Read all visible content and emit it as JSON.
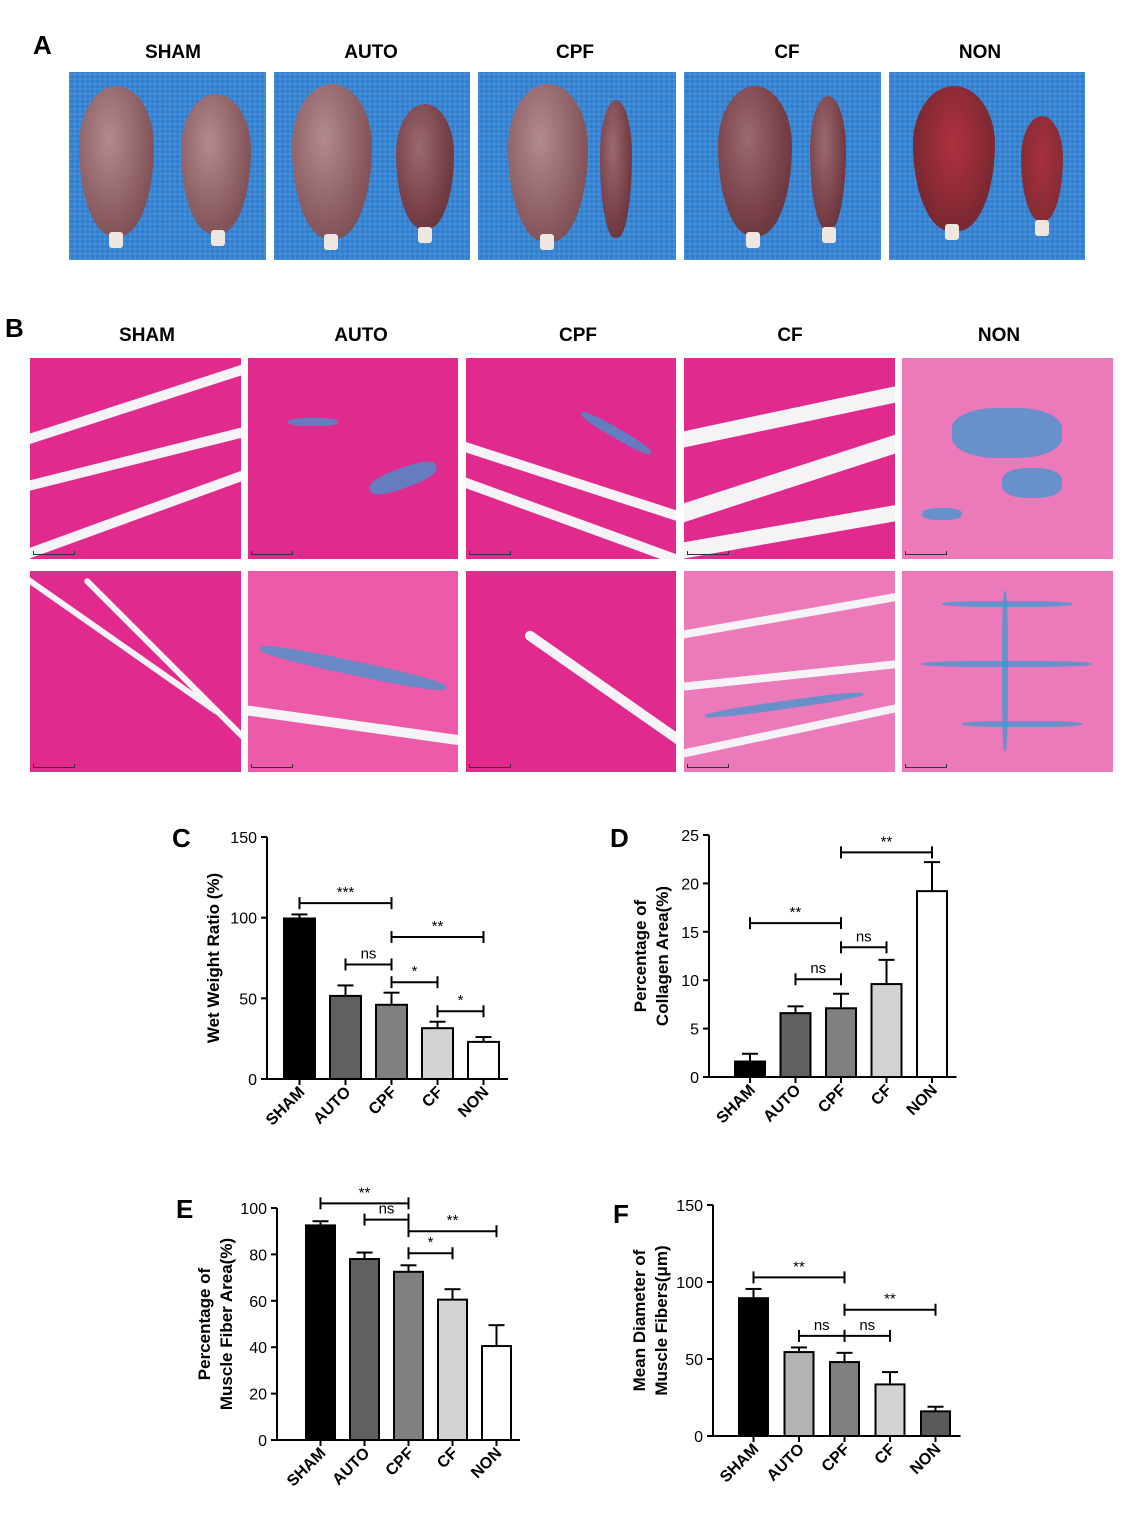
{
  "panels": {
    "a": {
      "letter": "A",
      "labels": [
        "SHAM",
        "AUTO",
        "CPF",
        "CF",
        "NON"
      ]
    },
    "b": {
      "letter": "B",
      "labels": [
        "SHAM",
        "AUTO",
        "CPF",
        "CF",
        "NON"
      ]
    }
  },
  "chart_data": [
    {
      "panel": "C",
      "type": "bar",
      "categories": [
        "SHAM",
        "AUTO",
        "CPF",
        "CF",
        "NON"
      ],
      "values": [
        99.5,
        51.5,
        46,
        31.5,
        23
      ],
      "errors": [
        2.5,
        6.5,
        7.5,
        4,
        3
      ],
      "fills": [
        "#000000",
        "#606060",
        "#808080",
        "#d3d3d3",
        "#ffffff"
      ],
      "ylabel": "Wet Weight Ratio (%)",
      "ylim": [
        0,
        150
      ],
      "yticks": [
        0,
        50,
        100,
        150
      ],
      "annotations": [
        {
          "from": "SHAM",
          "to": "CPF",
          "y": 109,
          "label": "***"
        },
        {
          "from": "AUTO",
          "to": "CPF",
          "y": 71,
          "label": "ns"
        },
        {
          "from": "CPF",
          "to": "NON",
          "y": 88,
          "label": "**"
        },
        {
          "from": "CPF",
          "to": "CF",
          "y": 60,
          "label": "*"
        },
        {
          "from": "CF",
          "to": "NON",
          "y": 42,
          "label": "*"
        }
      ]
    },
    {
      "panel": "D",
      "type": "bar",
      "categories": [
        "SHAM",
        "AUTO",
        "CPF",
        "CF",
        "NON"
      ],
      "values": [
        1.6,
        6.6,
        7.1,
        9.6,
        19.2
      ],
      "errors": [
        0.8,
        0.7,
        1.5,
        2.5,
        3.0
      ],
      "fills": [
        "#000000",
        "#606060",
        "#808080",
        "#d3d3d3",
        "#ffffff"
      ],
      "ylabel": "Percentage of Collagen Area(%)",
      "ylim": [
        0,
        25
      ],
      "yticks": [
        0,
        5,
        10,
        15,
        20,
        25
      ],
      "annotations": [
        {
          "from": "SHAM",
          "to": "CPF",
          "y": 15.9,
          "label": "**"
        },
        {
          "from": "AUTO",
          "to": "CPF",
          "y": 10.1,
          "label": "ns"
        },
        {
          "from": "CPF",
          "to": "CF",
          "y": 13.4,
          "label": "ns"
        },
        {
          "from": "CPF",
          "to": "NON",
          "y": 23.2,
          "label": "**"
        }
      ]
    },
    {
      "panel": "E",
      "type": "bar",
      "categories": [
        "SHAM",
        "AUTO",
        "CPF",
        "CF",
        "NON"
      ],
      "values": [
        92.5,
        78,
        72.5,
        60.5,
        40.5
      ],
      "errors": [
        1.8,
        2.8,
        2.8,
        4.5,
        9
      ],
      "fills": [
        "#000000",
        "#606060",
        "#808080",
        "#d3d3d3",
        "#ffffff"
      ],
      "ylabel": "Percentage of Muscle Fiber Area(%)",
      "ylim": [
        0,
        100
      ],
      "yticks": [
        0,
        20,
        40,
        60,
        80,
        100
      ],
      "annotations": [
        {
          "from": "SHAM",
          "to": "CPF",
          "y": 102,
          "label": "**"
        },
        {
          "from": "AUTO",
          "to": "CPF",
          "y": 95,
          "label": "ns"
        },
        {
          "from": "CPF",
          "to": "NON",
          "y": 90,
          "label": "**"
        },
        {
          "from": "CPF",
          "to": "CF",
          "y": 80.5,
          "label": "*"
        }
      ]
    },
    {
      "panel": "F",
      "type": "bar",
      "categories": [
        "SHAM",
        "AUTO",
        "CPF",
        "CF",
        "NON"
      ],
      "values": [
        89.5,
        54.5,
        48,
        33.5,
        16
      ],
      "errors": [
        6,
        3,
        6,
        8,
        3
      ],
      "fills": [
        "#000000",
        "#b3b3b3",
        "#808080",
        "#d3d3d3",
        "#5a5a5a"
      ],
      "ylabel": "Mean Diameter of Muscle Fibers(μm)",
      "ylim": [
        0,
        150
      ],
      "yticks": [
        0,
        50,
        100,
        150
      ],
      "annotations": [
        {
          "from": "SHAM",
          "to": "CPF",
          "y": 103,
          "label": "**"
        },
        {
          "from": "CPF",
          "to": "NON",
          "y": 82,
          "label": "**"
        },
        {
          "from": "AUTO",
          "to": "CPF",
          "y": 65,
          "label": "ns"
        },
        {
          "from": "CPF",
          "to": "CF",
          "y": 65,
          "label": "ns"
        }
      ]
    }
  ]
}
